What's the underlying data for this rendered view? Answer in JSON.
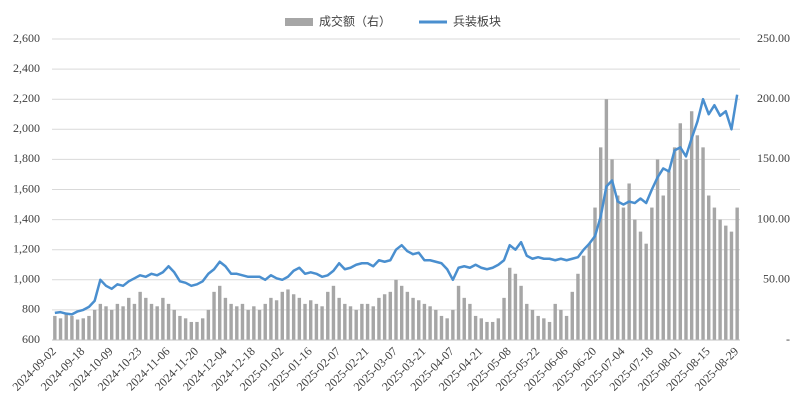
{
  "chart_data": {
    "type": "bar-line",
    "categories": [
      "2024-09-02",
      null,
      null,
      null,
      null,
      "2024-09-18",
      null,
      null,
      null,
      null,
      "2024-10-09",
      null,
      null,
      null,
      null,
      "2024-10-23",
      null,
      null,
      null,
      null,
      "2024-11-06",
      null,
      null,
      null,
      null,
      "2024-11-20",
      null,
      null,
      null,
      null,
      "2024-12-04",
      null,
      null,
      null,
      null,
      "2024-12-18",
      null,
      null,
      null,
      null,
      "2025-01-02",
      null,
      null,
      null,
      null,
      "2025-01-16",
      null,
      null,
      null,
      null,
      "2025-02-07",
      null,
      null,
      null,
      null,
      "2025-02-21",
      null,
      null,
      null,
      null,
      "2025-03-07",
      null,
      null,
      null,
      null,
      "2025-03-21",
      null,
      null,
      null,
      null,
      "2025-04-07",
      null,
      null,
      null,
      null,
      "2025-04-21",
      null,
      null,
      null,
      null,
      "2025-05-08",
      null,
      null,
      null,
      null,
      "2025-05-22",
      null,
      null,
      null,
      null,
      "2025-06-06",
      null,
      null,
      null,
      null,
      "2025-06-20",
      null,
      null,
      null,
      null,
      "2025-07-04",
      null,
      null,
      null,
      null,
      "2025-07-18",
      null,
      null,
      null,
      null,
      "2025-08-01",
      null,
      null,
      null,
      null,
      "2025-08-15",
      null,
      null,
      null,
      null,
      "2025-08-29"
    ],
    "series": [
      {
        "name": "成交额（右）",
        "type": "bar",
        "axis": "y2",
        "color": "#a6a6a6",
        "values": [
          20,
          18,
          22,
          20,
          17,
          18,
          20,
          25,
          30,
          28,
          25,
          30,
          28,
          35,
          30,
          40,
          35,
          30,
          28,
          35,
          30,
          25,
          20,
          18,
          15,
          15,
          18,
          25,
          40,
          45,
          35,
          30,
          28,
          30,
          25,
          28,
          25,
          30,
          35,
          33,
          40,
          42,
          38,
          35,
          30,
          33,
          30,
          28,
          40,
          45,
          35,
          30,
          28,
          25,
          30,
          30,
          28,
          35,
          38,
          40,
          50,
          45,
          40,
          35,
          33,
          30,
          28,
          25,
          20,
          18,
          25,
          45,
          35,
          30,
          20,
          18,
          15,
          15,
          18,
          35,
          60,
          55,
          45,
          30,
          25,
          20,
          18,
          15,
          30,
          25,
          20,
          40,
          55,
          70,
          80,
          110,
          160,
          200,
          150,
          120,
          110,
          130,
          100,
          90,
          80,
          110,
          150,
          120,
          140,
          160,
          180,
          150,
          190,
          170,
          160,
          120,
          110,
          100,
          95,
          90,
          110
        ]
      },
      {
        "name": "兵装板块",
        "type": "line",
        "color": "#4a8fcf",
        "values": [
          780,
          785,
          775,
          770,
          790,
          800,
          820,
          860,
          1000,
          960,
          940,
          970,
          960,
          990,
          1010,
          1030,
          1020,
          1040,
          1030,
          1050,
          1090,
          1050,
          990,
          980,
          960,
          970,
          990,
          1040,
          1070,
          1120,
          1090,
          1040,
          1040,
          1030,
          1020,
          1020,
          1020,
          1000,
          1030,
          1010,
          1000,
          1020,
          1060,
          1080,
          1040,
          1050,
          1040,
          1020,
          1030,
          1060,
          1110,
          1070,
          1080,
          1100,
          1110,
          1110,
          1090,
          1130,
          1120,
          1130,
          1200,
          1230,
          1190,
          1170,
          1180,
          1130,
          1130,
          1120,
          1110,
          1070,
          1000,
          1080,
          1090,
          1080,
          1100,
          1080,
          1070,
          1080,
          1100,
          1130,
          1230,
          1200,
          1250,
          1160,
          1140,
          1150,
          1140,
          1140,
          1130,
          1140,
          1130,
          1140,
          1150,
          1200,
          1240,
          1290,
          1420,
          1620,
          1660,
          1520,
          1500,
          1520,
          1510,
          1540,
          1510,
          1600,
          1680,
          1740,
          1720,
          1860,
          1880,
          1820,
          1940,
          2050,
          2200,
          2100,
          2160,
          2090,
          2120,
          2000,
          2230
        ]
      }
    ],
    "ylim": [
      600,
      2600
    ],
    "yticks": [
      {
        "value": 600,
        "label": "600"
      },
      {
        "value": 800,
        "label": "800"
      },
      {
        "value": 1000,
        "label": "1,000"
      },
      {
        "value": 1200,
        "label": "1,200"
      },
      {
        "value": 1400,
        "label": "1,400"
      },
      {
        "value": 1600,
        "label": "1,600"
      },
      {
        "value": 1800,
        "label": "1,800"
      },
      {
        "value": 2000,
        "label": "2,000"
      },
      {
        "value": 2200,
        "label": "2,200"
      },
      {
        "value": 2400,
        "label": "2,400"
      },
      {
        "value": 2600,
        "label": "2,600"
      }
    ],
    "y2lim": [
      0,
      250
    ],
    "y2ticks": [
      {
        "value": 0,
        "label": "-"
      },
      {
        "value": 50,
        "label": "50.00"
      },
      {
        "value": 100,
        "label": "100.00"
      },
      {
        "value": 150,
        "label": "150.00"
      },
      {
        "value": 200,
        "label": "200.00"
      },
      {
        "value": 250,
        "label": "250.00"
      }
    ],
    "grid": true,
    "legend": "top"
  }
}
